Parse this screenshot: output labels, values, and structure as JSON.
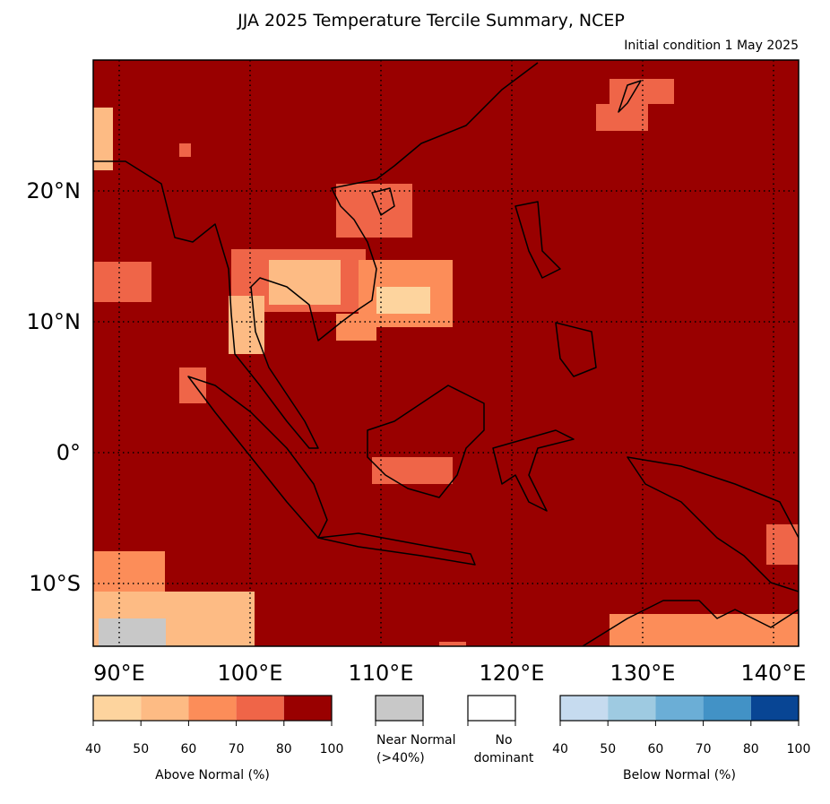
{
  "header": {
    "title": "JJA 2025 Temperature Tercile Summary, NCEP",
    "subtitle": "Initial condition 1 May 2025"
  },
  "map": {
    "lat_labels": [
      "20°N",
      "10°N",
      "0°",
      "10°S"
    ],
    "lon_labels": [
      "90°E",
      "100°E",
      "110°E",
      "120°E",
      "130°E",
      "140°E"
    ]
  },
  "legend": {
    "above": {
      "caption": "Above Normal (%)",
      "colors": [
        "#fdd49e",
        "#fdbb84",
        "#fc8d59",
        "#ef6548",
        "#990000"
      ],
      "ticks": [
        "40",
        "50",
        "60",
        "70",
        "80",
        "100"
      ]
    },
    "near": {
      "lines": [
        "Near Normal",
        "(>40%)"
      ],
      "color": "#c8c8c8"
    },
    "none": {
      "lines": [
        "No",
        "dominant"
      ],
      "color": "#ffffff"
    },
    "below": {
      "caption": "Below Normal (%)",
      "colors": [
        "#c6dbef",
        "#9ecae1",
        "#6baed6",
        "#4292c6",
        "#084594"
      ],
      "ticks": [
        "40",
        "50",
        "60",
        "70",
        "80",
        "100"
      ]
    }
  }
}
